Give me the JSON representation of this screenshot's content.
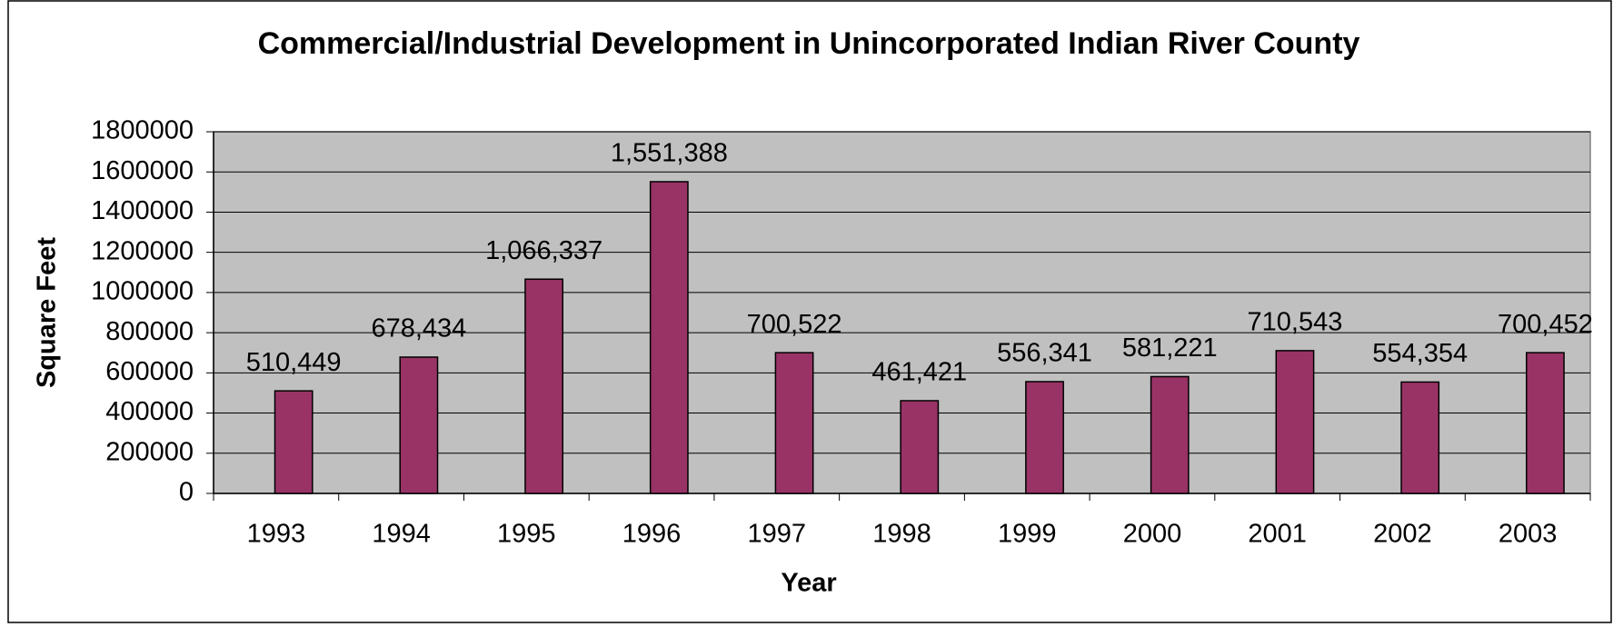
{
  "chart_data": {
    "type": "bar",
    "title": "Commercial/Industrial Development in Unincorporated Indian River County",
    "x_label": "Year",
    "y_label": "Square Feet",
    "categories": [
      "1993",
      "1994",
      "1995",
      "1996",
      "1997",
      "1998",
      "1999",
      "2000",
      "2001",
      "2002",
      "2003"
    ],
    "values": [
      510449,
      678434,
      1066337,
      1551388,
      700522,
      461421,
      556341,
      581221,
      710543,
      554354,
      700452
    ],
    "value_labels": [
      "510,449",
      "678,434",
      "1,066,337",
      "1,551,388",
      "700,522",
      "461,421",
      "556,341",
      "581,221",
      "710,543",
      "554,354",
      "700,452"
    ],
    "color": "#993366",
    "plot_background": "#c0c0c0",
    "ylim": [
      0,
      1800000
    ],
    "yticks": [
      0,
      200000,
      400000,
      600000,
      800000,
      1000000,
      1200000,
      1400000,
      1600000,
      1800000
    ],
    "grid": true
  }
}
